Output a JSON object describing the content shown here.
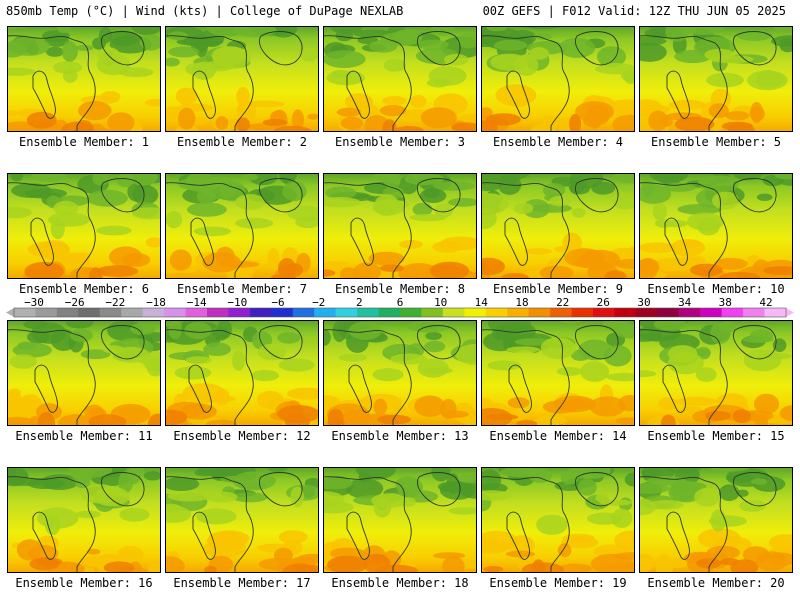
{
  "header": {
    "left_title": "850mb Temp (°C) | Wind (kts) | College of DuPage NEXLAB",
    "right_title": "00Z GEFS | F012 Valid: 12Z THU JUN 05 2025"
  },
  "panels": [
    {
      "label": "Ensemble Member: 1"
    },
    {
      "label": "Ensemble Member: 2"
    },
    {
      "label": "Ensemble Member: 3"
    },
    {
      "label": "Ensemble Member: 4"
    },
    {
      "label": "Ensemble Member: 5"
    },
    {
      "label": "Ensemble Member: 6"
    },
    {
      "label": "Ensemble Member: 7"
    },
    {
      "label": "Ensemble Member: 8"
    },
    {
      "label": "Ensemble Member: 9"
    },
    {
      "label": "Ensemble Member: 10"
    },
    {
      "label": "Ensemble Member: 11"
    },
    {
      "label": "Ensemble Member: 12"
    },
    {
      "label": "Ensemble Member: 13"
    },
    {
      "label": "Ensemble Member: 14"
    },
    {
      "label": "Ensemble Member: 15"
    },
    {
      "label": "Ensemble Member: 16"
    },
    {
      "label": "Ensemble Member: 17"
    },
    {
      "label": "Ensemble Member: 18"
    },
    {
      "label": "Ensemble Member: 19"
    },
    {
      "label": "Ensemble Member: 20"
    }
  ],
  "colorbar": {
    "tick_labels": [
      "−30",
      "−26",
      "−22",
      "−18",
      "−14",
      "−10",
      "−6",
      "−2",
      "2",
      "6",
      "10",
      "14",
      "18",
      "22",
      "26",
      "30",
      "34",
      "38",
      "42"
    ],
    "colors": [
      "#b0b0b0",
      "#9a9a9a",
      "#828282",
      "#6e6e6e",
      "#8a8a8a",
      "#a8a8a8",
      "#c8b0d8",
      "#d890e8",
      "#e060e0",
      "#c030c0",
      "#9020d0",
      "#4020c0",
      "#2030d0",
      "#2070e0",
      "#20b0f0",
      "#30d0e0",
      "#20c0a0",
      "#20b060",
      "#40b030",
      "#80c020",
      "#c8e020",
      "#f0f000",
      "#f8d000",
      "#f8b000",
      "#f09000",
      "#f06000",
      "#e83000",
      "#e01010",
      "#c00010",
      "#a00020",
      "#900040",
      "#b00080",
      "#d000c0",
      "#f040f0",
      "#f080f0",
      "#f8b8f8"
    ]
  }
}
